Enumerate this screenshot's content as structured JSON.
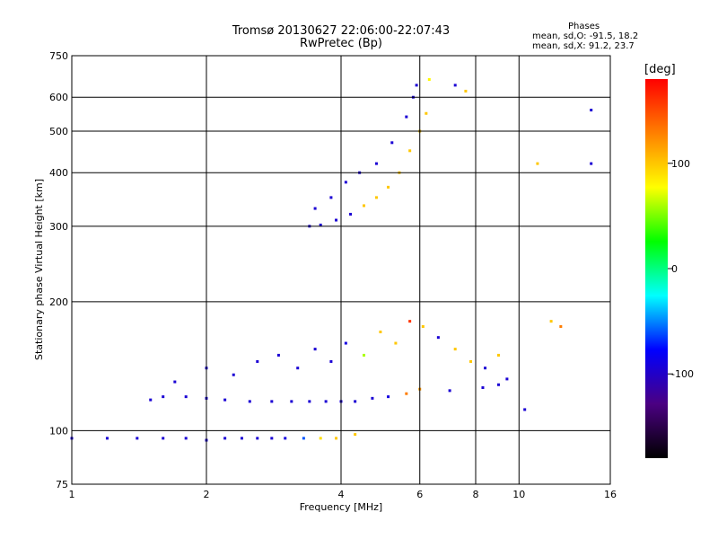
{
  "title": "Tromsø 20130627 22:06:00-22:07:43",
  "subtitle": "RwPretec (Bp)",
  "phases": {
    "heading": "Phases",
    "o_line": "mean, sd,O: -91.5, 18.2",
    "x_line": "mean, sd,X:  91.2, 23.7"
  },
  "colorbar": {
    "label": "[deg]",
    "ticks": [
      "100",
      "0",
      "-100"
    ],
    "tick_values": [
      100,
      0,
      -100
    ],
    "range": [
      -180,
      180
    ],
    "colors": [
      "#000000",
      "#4b0082",
      "#0000ff",
      "#00ffff",
      "#00ff00",
      "#ffff00",
      "#ff8000",
      "#ff0000"
    ]
  },
  "chart_data": {
    "type": "scatter",
    "title": "Tromsø 20130627 22:06:00-22:07:43",
    "subtitle": "RwPretec (Bp)",
    "xlabel": "Frequency [MHz]",
    "ylabel": "Stationary phase Virtual Height [km]",
    "x_scale": "log",
    "y_scale": "log",
    "xlim": [
      1,
      16
    ],
    "ylim": [
      75,
      750
    ],
    "x_ticks": [
      1,
      2,
      4,
      6,
      8,
      10,
      16
    ],
    "x_tick_labels": [
      "1",
      "2",
      "4",
      "6",
      "8",
      "10",
      "16"
    ],
    "y_ticks": [
      75,
      100,
      200,
      300,
      400,
      500,
      600,
      750
    ],
    "y_tick_labels": [
      "75",
      "100",
      "200",
      "300",
      "400",
      "500",
      "600",
      "750"
    ],
    "grid": true,
    "color_encoding": "phase [deg]",
    "series": [
      {
        "points": [
          [
            1.0,
            96,
            -95
          ],
          [
            1.2,
            96,
            -95
          ],
          [
            1.4,
            96,
            -95
          ],
          [
            1.6,
            96,
            -95
          ],
          [
            1.8,
            96,
            -95
          ],
          [
            2.0,
            95,
            -95
          ],
          [
            2.2,
            96,
            -95
          ],
          [
            2.4,
            96,
            -95
          ],
          [
            2.6,
            96,
            -95
          ],
          [
            2.8,
            96,
            -95
          ],
          [
            3.0,
            96,
            -90
          ],
          [
            3.3,
            96,
            -60
          ],
          [
            3.6,
            96,
            90
          ],
          [
            3.9,
            96,
            100
          ],
          [
            4.3,
            98,
            100
          ],
          [
            1.5,
            118,
            -95
          ],
          [
            1.6,
            120,
            -95
          ],
          [
            1.8,
            120,
            -95
          ],
          [
            2.0,
            119,
            -95
          ],
          [
            2.2,
            118,
            -95
          ],
          [
            2.5,
            117,
            -95
          ],
          [
            2.8,
            117,
            -95
          ],
          [
            3.1,
            117,
            -95
          ],
          [
            3.4,
            117,
            -95
          ],
          [
            3.7,
            117,
            -95
          ],
          [
            4.0,
            117,
            -95
          ],
          [
            4.3,
            117,
            -95
          ],
          [
            4.7,
            119,
            -95
          ],
          [
            5.1,
            120,
            -90
          ],
          [
            5.6,
            122,
            130
          ],
          [
            6.0,
            125,
            120
          ],
          [
            7.0,
            124,
            -95
          ],
          [
            8.3,
            126,
            -95
          ],
          [
            9.0,
            128,
            -95
          ],
          [
            9.4,
            132,
            -95
          ],
          [
            1.7,
            130,
            -95
          ],
          [
            2.0,
            140,
            -95
          ],
          [
            2.3,
            135,
            -95
          ],
          [
            2.6,
            145,
            -95
          ],
          [
            2.9,
            150,
            -95
          ],
          [
            3.2,
            140,
            -95
          ],
          [
            3.5,
            155,
            -95
          ],
          [
            3.8,
            145,
            -95
          ],
          [
            4.1,
            160,
            -90
          ],
          [
            4.5,
            150,
            60
          ],
          [
            4.9,
            170,
            100
          ],
          [
            5.3,
            160,
            100
          ],
          [
            5.7,
            180,
            160
          ],
          [
            6.1,
            175,
            100
          ],
          [
            6.6,
            165,
            -95
          ],
          [
            7.2,
            155,
            100
          ],
          [
            7.8,
            145,
            100
          ],
          [
            8.4,
            140,
            -95
          ],
          [
            9.0,
            150,
            100
          ],
          [
            3.4,
            300,
            -95
          ],
          [
            3.6,
            302,
            -95
          ],
          [
            3.9,
            310,
            -95
          ],
          [
            4.2,
            320,
            -95
          ],
          [
            4.5,
            335,
            100
          ],
          [
            4.8,
            350,
            100
          ],
          [
            5.1,
            370,
            100
          ],
          [
            5.4,
            400,
            100
          ],
          [
            5.7,
            450,
            100
          ],
          [
            6.0,
            500,
            100
          ],
          [
            6.2,
            550,
            100
          ],
          [
            3.5,
            330,
            -95
          ],
          [
            3.8,
            350,
            -95
          ],
          [
            4.1,
            380,
            -95
          ],
          [
            4.4,
            400,
            -95
          ],
          [
            4.8,
            420,
            -95
          ],
          [
            5.2,
            470,
            -95
          ],
          [
            5.6,
            540,
            -95
          ],
          [
            5.8,
            600,
            -95
          ],
          [
            5.9,
            640,
            -95
          ],
          [
            6.3,
            660,
            80
          ],
          [
            7.2,
            640,
            -95
          ],
          [
            7.6,
            620,
            100
          ],
          [
            14.5,
            560,
            -95
          ],
          [
            14.5,
            420,
            -95
          ],
          [
            11.0,
            420,
            100
          ],
          [
            10.3,
            112,
            -95
          ],
          [
            11.8,
            180,
            100
          ],
          [
            12.4,
            175,
            130
          ]
        ]
      }
    ]
  }
}
